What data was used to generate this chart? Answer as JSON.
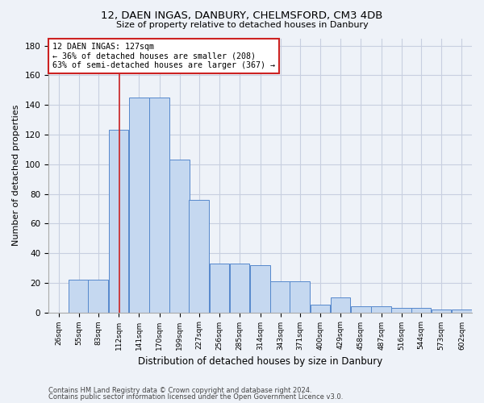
{
  "title1": "12, DAEN INGAS, DANBURY, CHELMSFORD, CM3 4DB",
  "title2": "Size of property relative to detached houses in Danbury",
  "xlabel": "Distribution of detached houses by size in Danbury",
  "ylabel": "Number of detached properties",
  "footer1": "Contains HM Land Registry data © Crown copyright and database right 2024.",
  "footer2": "Contains public sector information licensed under the Open Government Licence v3.0.",
  "bin_labels": [
    "26sqm",
    "55sqm",
    "83sqm",
    "112sqm",
    "141sqm",
    "170sqm",
    "199sqm",
    "227sqm",
    "256sqm",
    "285sqm",
    "314sqm",
    "343sqm",
    "371sqm",
    "400sqm",
    "429sqm",
    "458sqm",
    "487sqm",
    "516sqm",
    "544sqm",
    "573sqm",
    "602sqm"
  ],
  "bar_values": [
    0,
    22,
    22,
    123,
    145,
    145,
    103,
    76,
    33,
    33,
    32,
    21,
    21,
    5,
    10,
    4,
    4,
    3,
    3,
    2,
    2
  ],
  "bar_color": "#c5d8f0",
  "bar_edge_color": "#5588cc",
  "ylim": [
    0,
    185
  ],
  "yticks": [
    0,
    20,
    40,
    60,
    80,
    100,
    120,
    140,
    160,
    180
  ],
  "property_size": 127,
  "vline_color": "#cc2222",
  "annotation_line1": "12 DAEN INGAS: 127sqm",
  "annotation_line2": "← 36% of detached houses are smaller (208)",
  "annotation_line3": "63% of semi-detached houses are larger (367) →",
  "annotation_box_color": "#ffffff",
  "annotation_box_edge": "#cc2222",
  "bg_color": "#eef2f8",
  "grid_color": "#c8cfe0",
  "bin_width": 29
}
